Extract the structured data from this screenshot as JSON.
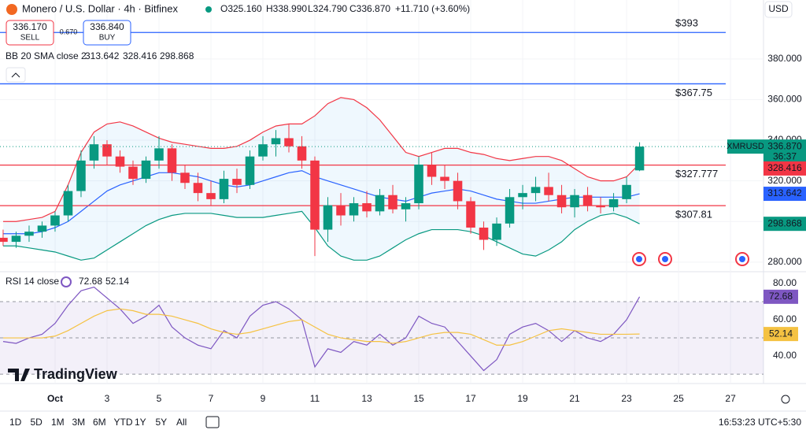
{
  "header": {
    "symbol": "Monero / U.S. Dollar · 4h · Bitfinex",
    "open": "O325.160",
    "high": "H338.990",
    "low": "L324.790",
    "close": "C336.870",
    "change": "+11.710 (+3.60%)",
    "currency": "USD"
  },
  "trade": {
    "sell_price": "336.170",
    "sell": "SELL",
    "spread": "0.670",
    "buy_price": "336.840",
    "buy": "BUY"
  },
  "toolbar": {
    "ranges": [
      "1D",
      "5D",
      "1M",
      "3M",
      "6M",
      "YTD",
      "1Y",
      "5Y",
      "All"
    ],
    "time": "16:53:23 UTC+5:30"
  },
  "chart_data": [
    {
      "type": "candlestick",
      "symbol": "XMRUSD",
      "countdown": "36:37",
      "indicator": "BB 20 SMA close 2",
      "x": [
        -1,
        -0.5,
        0,
        0.5,
        1,
        1.5,
        2,
        2.5,
        3,
        3.5,
        4,
        4.5,
        5,
        5.5,
        6,
        6.5,
        7,
        7.5,
        8,
        8.5,
        9,
        9.5,
        10,
        10.5,
        11,
        11.5,
        12,
        12.5,
        13,
        13.5,
        14,
        14.5,
        15,
        15.5,
        16,
        16.5,
        17,
        17.5,
        18,
        18.5,
        19,
        19.5,
        20,
        20.5,
        21,
        21.5,
        22,
        22.5,
        23,
        23.5
      ],
      "open": [
        292,
        290,
        293,
        295,
        298,
        303,
        315,
        330,
        338,
        332,
        327,
        321,
        330,
        336,
        324,
        319,
        314,
        311,
        321,
        318,
        332,
        338,
        341,
        337,
        330,
        296,
        308,
        303,
        309,
        305,
        313,
        306,
        309,
        328,
        322,
        320,
        310,
        297,
        291,
        299,
        312,
        314,
        317,
        313,
        307,
        313,
        308,
        307,
        311,
        325.16
      ],
      "high": [
        296,
        295,
        298,
        300,
        305,
        318,
        335,
        342,
        340,
        335,
        330,
        332,
        342,
        338,
        328,
        324,
        320,
        325,
        326,
        335,
        342,
        345,
        348,
        342,
        332,
        312,
        314,
        312,
        315,
        316,
        318,
        312,
        332,
        334,
        328,
        324,
        312,
        300,
        302,
        316,
        318,
        322,
        324,
        318,
        316,
        317,
        312,
        314,
        322,
        338.99
      ],
      "low": [
        288,
        287,
        290,
        292,
        295,
        300,
        312,
        326,
        328,
        324,
        318,
        319,
        326,
        320,
        316,
        310,
        308,
        309,
        314,
        316,
        330,
        332,
        334,
        326,
        283,
        290,
        298,
        300,
        302,
        303,
        304,
        300,
        306,
        318,
        316,
        306,
        294,
        286,
        288,
        297,
        306,
        310,
        310,
        304,
        302,
        305,
        304,
        305,
        309,
        324.79
      ],
      "close": [
        290,
        293,
        295,
        298,
        303,
        315,
        330,
        338,
        332,
        327,
        321,
        330,
        336,
        324,
        319,
        314,
        311,
        321,
        318,
        332,
        338,
        341,
        337,
        330,
        296,
        308,
        303,
        309,
        305,
        313,
        306,
        309,
        328,
        322,
        320,
        310,
        297,
        291,
        299,
        312,
        314,
        317,
        313,
        307,
        313,
        308,
        307,
        311,
        318,
        336.87
      ],
      "value_labels": {
        "last": "336.870"
      },
      "up_color": "#089981",
      "down_color": "#f23645",
      "bands": [
        {
          "color": "#2962ff",
          "last": 313.642,
          "values": [
            294,
            294,
            294,
            295,
            297,
            300,
            305,
            310,
            315,
            318,
            320,
            322,
            324,
            324,
            323,
            322,
            320,
            318,
            317,
            318,
            320,
            322,
            324,
            325,
            322,
            320,
            318,
            316,
            314,
            312,
            311,
            310,
            312,
            314,
            315,
            316,
            315,
            313,
            311,
            310,
            309,
            309,
            310,
            311,
            312,
            312,
            312,
            312,
            312,
            313.642
          ]
        },
        {
          "color": "#f23645",
          "last": 328.416,
          "values": [
            300,
            300,
            301,
            302,
            305,
            318,
            334,
            344,
            348,
            349,
            347,
            344,
            341,
            339,
            338,
            337,
            336,
            336,
            337,
            340,
            344,
            347,
            348,
            348,
            352,
            358,
            361,
            360,
            356,
            350,
            342,
            334,
            332,
            334,
            336,
            336,
            334,
            333,
            331,
            330,
            331,
            332,
            332,
            330,
            326,
            322,
            320,
            320,
            322,
            328.416
          ]
        },
        {
          "color": "#089981",
          "last": 298.868,
          "values": [
            288,
            288,
            287,
            286,
            285,
            283,
            281,
            282,
            286,
            290,
            294,
            298,
            301,
            303,
            304,
            304,
            304,
            303,
            302,
            302,
            302,
            303,
            304,
            305,
            297,
            288,
            283,
            281,
            281,
            283,
            287,
            291,
            294,
            296,
            296,
            296,
            295,
            293,
            290,
            287,
            284,
            283,
            286,
            290,
            296,
            300,
            303,
            304,
            302,
            298.868
          ]
        }
      ],
      "hlines": [
        {
          "value": 393,
          "label": "$393",
          "color": "#2962ff"
        },
        {
          "value": 367.75,
          "label": "$367.75",
          "color": "#2962ff"
        },
        {
          "value": 327.777,
          "label": "$327.777",
          "color": "#f23645"
        },
        {
          "value": 307.81,
          "label": "$307.81",
          "color": "#f23645"
        }
      ],
      "xlim": [
        -1.12,
        28.27
      ],
      "ylim": [
        275.3,
        409
      ],
      "xticks": [
        {
          "value": 1,
          "label": "Oct"
        },
        3,
        5,
        7,
        9,
        11,
        13,
        15,
        17,
        19,
        21,
        23,
        25,
        27
      ],
      "yticks": [
        {
          "value": 280,
          "label": "280.000"
        },
        {
          "value": 300,
          "label": "300.000"
        },
        {
          "value": 320,
          "label": "320.000"
        },
        {
          "value": 340,
          "label": "340.000"
        },
        {
          "value": 360,
          "label": "360.000"
        },
        {
          "value": 380,
          "label": "380.000"
        }
      ],
      "grid": true
    },
    {
      "type": "line",
      "title": "RSI 14 close",
      "x": [
        -1,
        -0.5,
        0,
        0.5,
        1,
        1.5,
        2,
        2.5,
        3,
        3.5,
        4,
        4.5,
        5,
        5.5,
        6,
        6.5,
        7,
        7.5,
        8,
        8.5,
        9,
        9.5,
        10,
        10.5,
        11,
        11.5,
        12,
        12.5,
        13,
        13.5,
        14,
        14.5,
        15,
        15.5,
        16,
        16.5,
        17,
        17.5,
        18,
        18.5,
        19,
        19.5,
        20,
        20.5,
        21,
        21.5,
        22,
        22.5,
        23,
        23.5
      ],
      "series": [
        {
          "color": "#7e57c2",
          "last": 72.68,
          "values": [
            48,
            47,
            50,
            52,
            58,
            68,
            76,
            78,
            72,
            66,
            58,
            62,
            68,
            56,
            50,
            46,
            44,
            54,
            50,
            62,
            68,
            70,
            66,
            60,
            34,
            44,
            42,
            48,
            46,
            52,
            46,
            50,
            62,
            58,
            56,
            48,
            40,
            32,
            38,
            52,
            56,
            58,
            54,
            48,
            54,
            50,
            48,
            52,
            60,
            72.68
          ]
        },
        {
          "color": "#f5c242",
          "last": 52.14,
          "values": [
            50,
            50,
            50,
            50,
            51,
            54,
            58,
            62,
            65,
            66,
            65,
            63,
            63,
            62,
            60,
            58,
            55,
            53,
            52,
            53,
            55,
            57,
            59,
            60,
            56,
            52,
            50,
            49,
            48,
            48,
            47,
            48,
            50,
            52,
            53,
            53,
            52,
            49,
            46,
            46,
            48,
            51,
            54,
            55,
            54,
            53,
            52,
            52,
            52,
            52.14
          ]
        }
      ],
      "band": [
        30,
        70
      ],
      "midline": 50,
      "xlim": [
        -1.12,
        28.27
      ],
      "ylim": [
        25.7,
        86.5
      ],
      "yticks": [
        {
          "value": 40,
          "label": "40.00"
        },
        {
          "value": 60,
          "label": "60.00"
        },
        {
          "value": 80,
          "label": "80.00"
        }
      ]
    }
  ]
}
